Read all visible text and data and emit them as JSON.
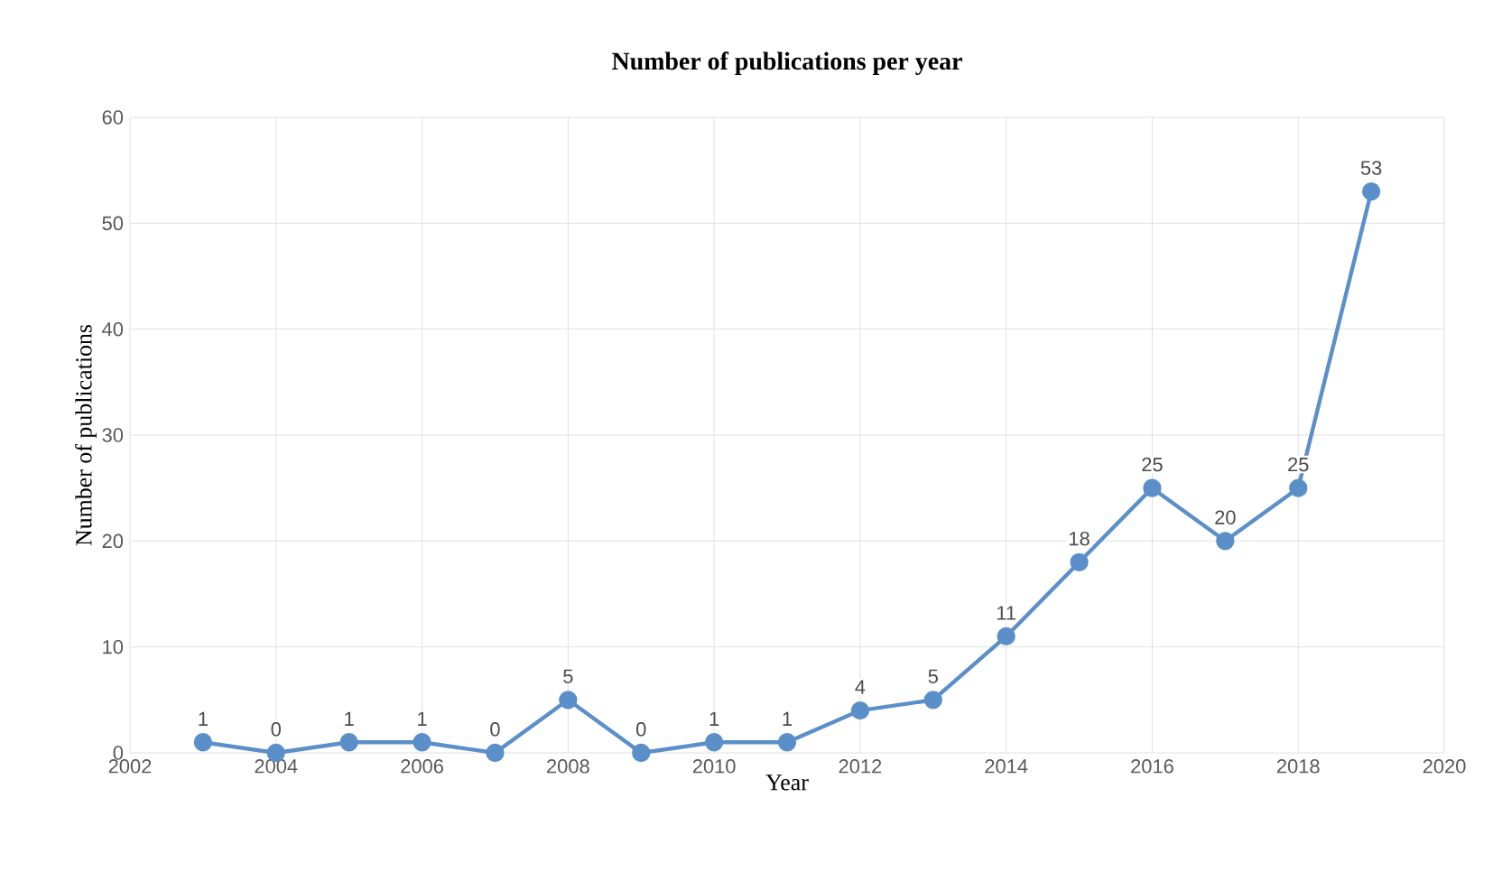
{
  "chart_data": {
    "type": "line",
    "title": "Number of publications per year",
    "xlabel": "Year",
    "ylabel": "Number of publications",
    "x": [
      2003,
      2004,
      2005,
      2006,
      2007,
      2008,
      2009,
      2010,
      2011,
      2012,
      2013,
      2014,
      2015,
      2016,
      2017,
      2018,
      2019
    ],
    "values": [
      1,
      0,
      1,
      1,
      0,
      5,
      0,
      1,
      1,
      4,
      5,
      11,
      18,
      25,
      20,
      25,
      53
    ],
    "color": "#5b8fc9",
    "marker": "circle",
    "line_style": "solid",
    "data_labels": true,
    "grid": true,
    "xlim": [
      2002,
      2020
    ],
    "ylim": [
      0,
      60
    ],
    "xticks": [
      2002,
      2004,
      2006,
      2008,
      2010,
      2012,
      2014,
      2016,
      2018,
      2020
    ],
    "yticks": [
      0,
      10,
      20,
      30,
      40,
      50,
      60
    ]
  }
}
